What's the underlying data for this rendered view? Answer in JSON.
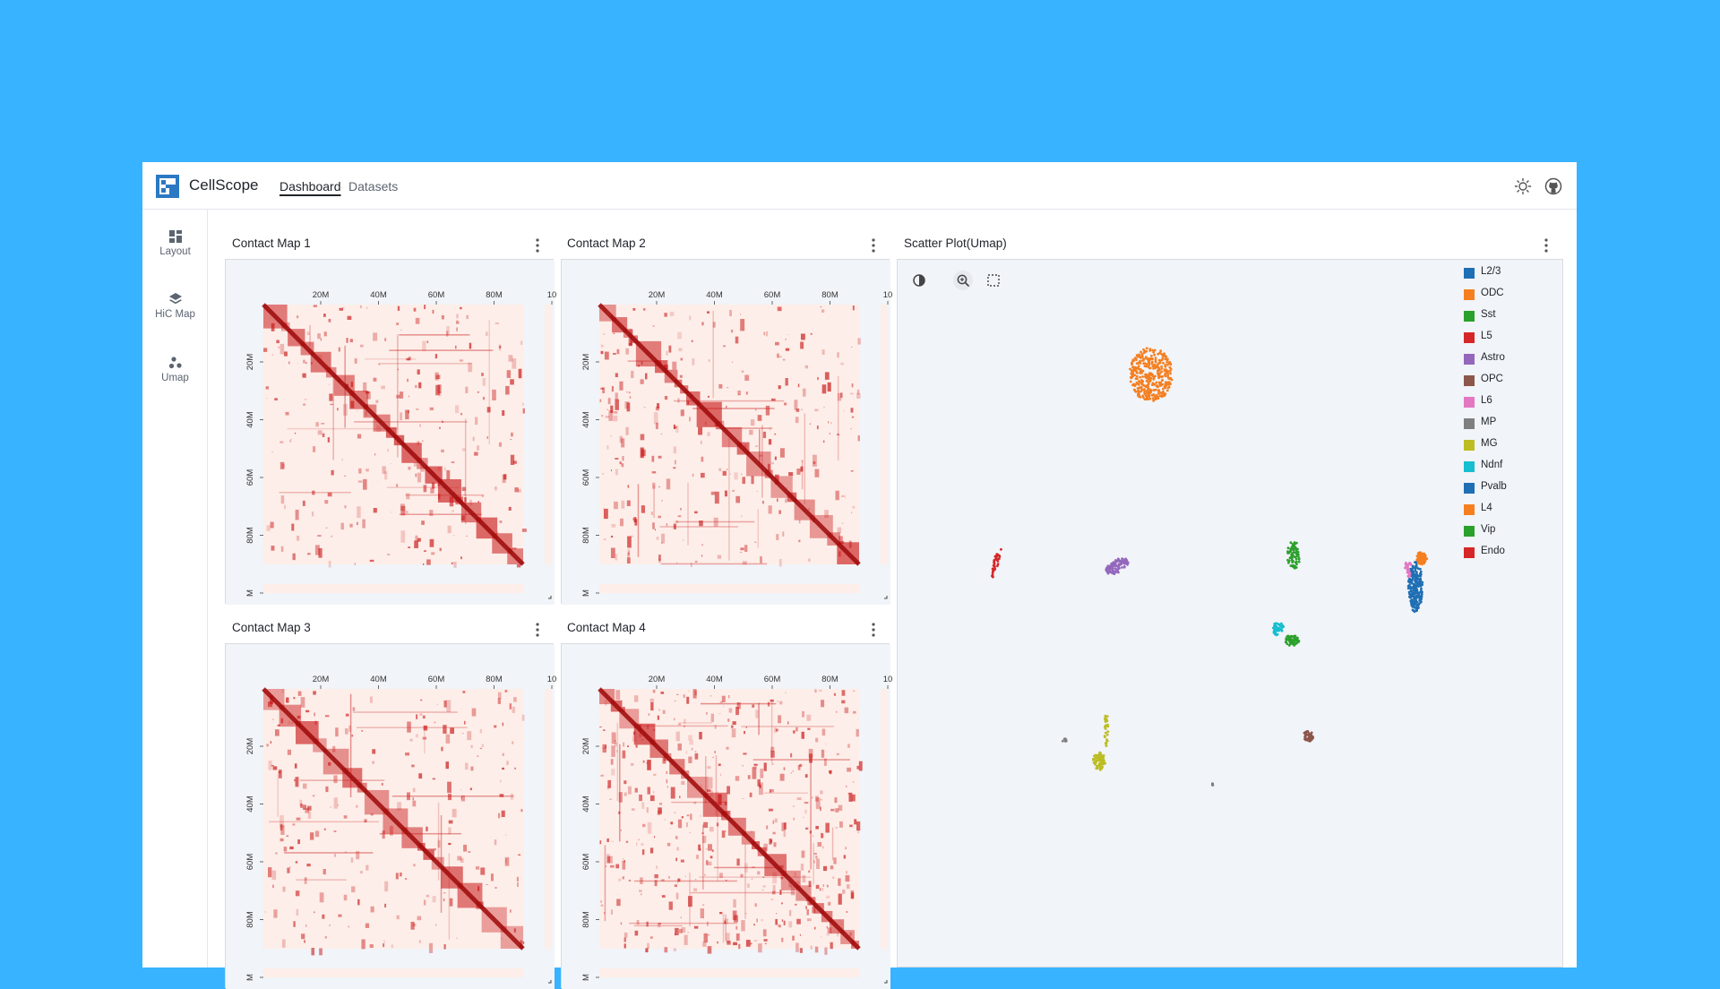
{
  "app": {
    "name": "CellScope"
  },
  "nav": {
    "tabs": [
      {
        "label": "Dashboard",
        "active": true
      },
      {
        "label": "Datasets",
        "active": false
      }
    ]
  },
  "sidebar": {
    "items": [
      {
        "label": "Layout",
        "icon": "grid-icon"
      },
      {
        "label": "HiC Map",
        "icon": "layers-icon"
      },
      {
        "label": "Umap",
        "icon": "dots-icon"
      }
    ]
  },
  "panels": {
    "contact_maps": [
      {
        "title": "Contact Map 1"
      },
      {
        "title": "Contact Map 2"
      },
      {
        "title": "Contact Map 3"
      },
      {
        "title": "Contact Map 4"
      }
    ],
    "scatter": {
      "title": "Scatter Plot(Umap)"
    }
  },
  "contact_map_axes": {
    "top_ticks": [
      "20M",
      "40M",
      "60M",
      "80M",
      "10"
    ],
    "left_ticks": [
      "20M",
      "40M",
      "60M",
      "80M",
      "M"
    ]
  },
  "legend": [
    {
      "label": "L2/3",
      "color": "#1f6fb4"
    },
    {
      "label": "ODC",
      "color": "#f57f20"
    },
    {
      "label": "Sst",
      "color": "#2ca02c"
    },
    {
      "label": "L5",
      "color": "#d62728"
    },
    {
      "label": "Astro",
      "color": "#9467bd"
    },
    {
      "label": "OPC",
      "color": "#8c564b"
    },
    {
      "label": "L6",
      "color": "#e377c2"
    },
    {
      "label": "MP",
      "color": "#7f7f7f"
    },
    {
      "label": "MG",
      "color": "#bcbd22"
    },
    {
      "label": "Ndnf",
      "color": "#17becf"
    },
    {
      "label": "Pvalb",
      "color": "#1f6fb4"
    },
    {
      "label": "L4",
      "color": "#f57f20"
    },
    {
      "label": "Vip",
      "color": "#2ca02c"
    },
    {
      "label": "Endo",
      "color": "#d62728"
    }
  ],
  "colors": {
    "accent": "#2b79c2",
    "heat": "#c81414",
    "heat_bg": "#fdeee9"
  }
}
